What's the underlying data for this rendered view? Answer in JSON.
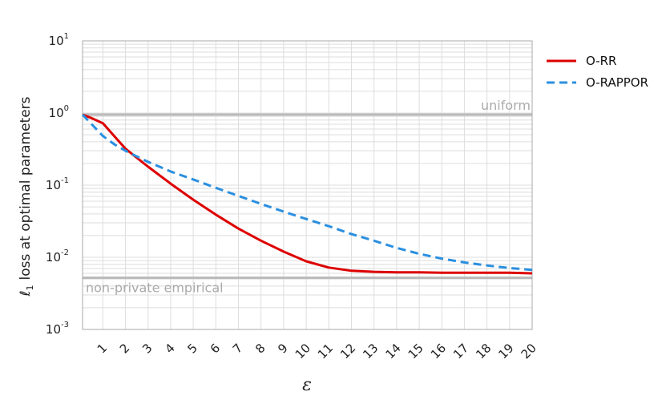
{
  "chart_data": {
    "type": "line",
    "title": "",
    "xlabel": "ε",
    "ylabel": "loss at optimal parameters",
    "ylabel_symbol": "ℓ",
    "ylabel_subscript": "1",
    "yscale": "log",
    "xlim": [
      0.1,
      20
    ],
    "ylim": [
      0.001,
      10
    ],
    "grid": true,
    "legend": "right-outside-top",
    "x_ticks": [
      "1",
      "2",
      "3",
      "4",
      "5",
      "6",
      "7",
      "8",
      "9",
      "10",
      "11",
      "12",
      "13",
      "14",
      "15",
      "16",
      "17",
      "18",
      "19",
      "20"
    ],
    "y_ticks": [
      {
        "base": "10",
        "exp": "1",
        "value": 10
      },
      {
        "base": "10",
        "exp": "0",
        "value": 1
      },
      {
        "base": "10",
        "exp": "-1",
        "value": 0.1
      },
      {
        "base": "10",
        "exp": "-2",
        "value": 0.01
      },
      {
        "base": "10",
        "exp": "-3",
        "value": 0.001
      }
    ],
    "reference_lines": [
      {
        "label": "uniform",
        "value": 0.95,
        "color": "#bbbbbb"
      },
      {
        "label": "non-private empirical",
        "value": 0.0052,
        "color": "#bbbbbb"
      }
    ],
    "series": [
      {
        "name": "O-RR",
        "color": "#dd0000",
        "dash": "solid",
        "x": [
          0.1,
          0.5,
          1,
          1.5,
          2,
          2.5,
          3,
          4,
          5,
          6,
          7,
          8,
          9,
          10,
          11,
          12,
          13,
          14,
          15,
          16,
          17,
          18,
          19,
          20
        ],
        "y": [
          0.95,
          0.85,
          0.72,
          0.48,
          0.32,
          0.24,
          0.18,
          0.105,
          0.063,
          0.039,
          0.025,
          0.017,
          0.012,
          0.0088,
          0.0072,
          0.0065,
          0.0063,
          0.0062,
          0.0062,
          0.0061,
          0.0061,
          0.0061,
          0.0061,
          0.006
        ]
      },
      {
        "name": "O-RAPPOR",
        "color": "#2a8fe0",
        "dash": "dashed",
        "x": [
          0.1,
          0.5,
          1,
          1.5,
          2,
          2.5,
          3,
          4,
          5,
          6,
          7,
          8,
          9,
          10,
          11,
          12,
          13,
          14,
          15,
          16,
          17,
          18,
          19,
          20
        ],
        "y": [
          0.95,
          0.7,
          0.48,
          0.37,
          0.3,
          0.25,
          0.21,
          0.155,
          0.12,
          0.092,
          0.071,
          0.055,
          0.043,
          0.034,
          0.027,
          0.021,
          0.017,
          0.0135,
          0.0112,
          0.0096,
          0.0085,
          0.0077,
          0.0071,
          0.0067
        ]
      }
    ]
  }
}
